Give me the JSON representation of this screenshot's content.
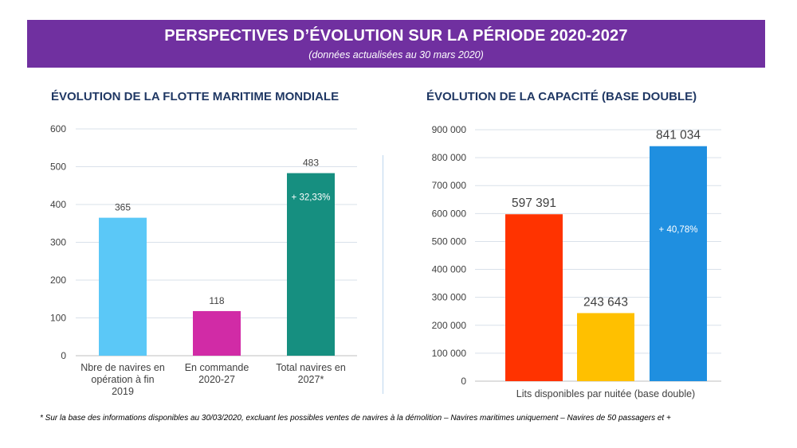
{
  "banner": {
    "title": "PERSPECTIVES D’ÉVOLUTION SUR LA PÉRIODE 2020-2027",
    "subtitle": "(données actualisées au 30 mars 2020)"
  },
  "footnote": "* Sur la base des informations disponibles au 30/03/2020, excluant les possibles ventes de navires à la démolition – Navires maritimes uniquement – Navires de 50 passagers et +",
  "chart_data": [
    {
      "type": "bar",
      "title": "ÉVOLUTION DE LA FLOTTE MARITIME MONDIALE",
      "categories": [
        [
          "Nbre de navires en",
          "opération à fin",
          "2019"
        ],
        [
          "En commande",
          "2020-27"
        ],
        [
          "Total navires en",
          "2027*"
        ]
      ],
      "values": [
        365,
        118,
        483
      ],
      "labels": [
        "365",
        "118",
        "483"
      ],
      "colors": [
        "#5bc8f7",
        "#d12ba6",
        "#168f80"
      ],
      "annotation": {
        "bar": 2,
        "text": "+ 32,33%"
      },
      "yticks": [
        "0",
        "100",
        "200",
        "300",
        "400",
        "500",
        "600"
      ],
      "ylim": [
        0,
        600
      ]
    },
    {
      "type": "bar",
      "title": "ÉVOLUTION DE LA CAPACITÉ (BASE DOUBLE)",
      "xlabel": "Lits disponibles par nuitée (base double)",
      "values": [
        597391,
        243643,
        841034
      ],
      "labels": [
        "597 391",
        "243 643",
        "841 034"
      ],
      "colors": [
        "#ff3300",
        "#ffc000",
        "#1f8fe0"
      ],
      "annotation": {
        "bar": 2,
        "text": "+ 40,78%"
      },
      "yticks": [
        "0",
        "100 000",
        "200 000",
        "300 000",
        "400 000",
        "500 000",
        "600 000",
        "700 000",
        "800 000",
        "900 000"
      ],
      "ylim": [
        0,
        900000
      ]
    }
  ]
}
